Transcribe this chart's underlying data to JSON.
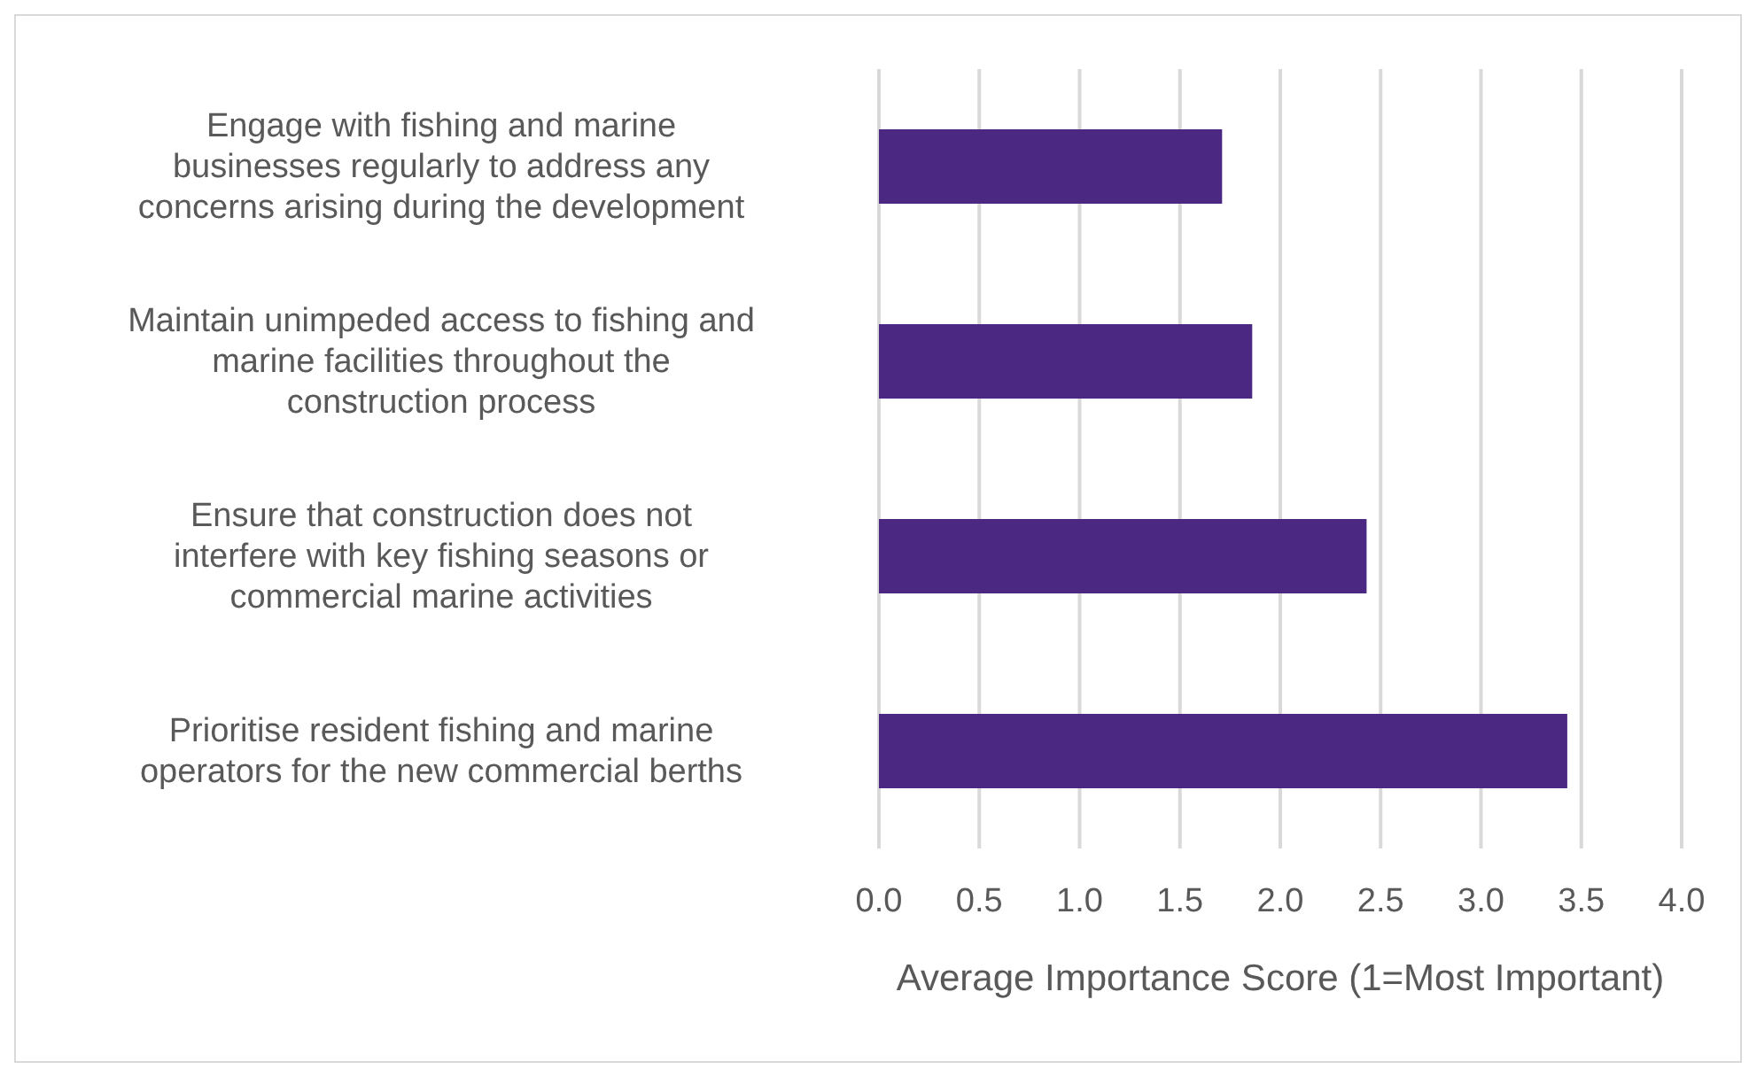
{
  "chart_data": {
    "type": "bar",
    "orientation": "horizontal",
    "xlabel": "Average Importance Score  (1=Most Important)",
    "categories": [
      "Engage with fishing and marine businesses regularly to address any concerns arising during the development",
      "Maintain unimpeded access to fishing and marine facilities throughout the construction process",
      "Ensure that construction does not interfere with key fishing seasons or commercial marine activities",
      "Prioritise resident fishing and marine operators for the new commercial berths"
    ],
    "values": [
      1.71,
      1.86,
      2.43,
      3.43
    ],
    "color": "#4b2882",
    "xlim": [
      0,
      4
    ],
    "xticks": [
      {
        "value": 0,
        "label": "0.0"
      },
      {
        "value": 0.5,
        "label": "0.5"
      },
      {
        "value": 1,
        "label": "1.0"
      },
      {
        "value": 1.5,
        "label": "1.5"
      },
      {
        "value": 2,
        "label": "2.0"
      },
      {
        "value": 2.5,
        "label": "2.5"
      },
      {
        "value": 3,
        "label": "3.0"
      },
      {
        "value": 3.5,
        "label": "3.5"
      },
      {
        "value": 4,
        "label": "4.0"
      }
    ],
    "grid": "x"
  }
}
